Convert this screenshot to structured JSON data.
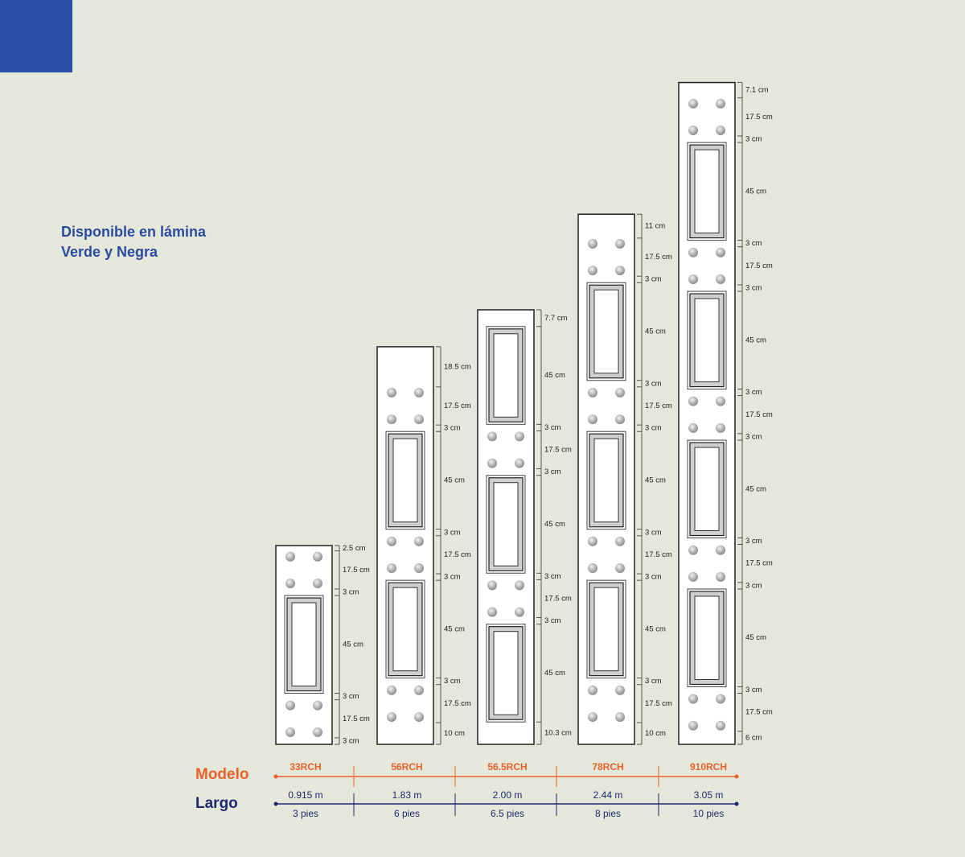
{
  "header": {
    "title_lines": [
      "Disponible en lámina",
      "Verde y Negra"
    ]
  },
  "legend": {
    "model_label": "Modelo",
    "length_label": "Largo"
  },
  "models": [
    {
      "name": "33RCH",
      "length_m": "0.915 m",
      "length_ft": "3 pies",
      "dimensions": [
        "2.5 cm",
        "17.5 cm",
        "3 cm",
        "45 cm",
        "3 cm",
        "17.5 cm",
        "3 cm"
      ]
    },
    {
      "name": "56RCH",
      "length_m": "1.83 m",
      "length_ft": "6 pies",
      "dimensions": [
        "18.5 cm",
        "17.5 cm",
        "3 cm",
        "45 cm",
        "3 cm",
        "17.5 cm",
        "3 cm",
        "45 cm",
        "3 cm",
        "17.5 cm",
        "10 cm"
      ]
    },
    {
      "name": "56.5RCH",
      "length_m": "2.00 m",
      "length_ft": "6.5 pies",
      "dimensions": [
        "7.7 cm",
        "45 cm",
        "3 cm",
        "17.5 cm",
        "3 cm",
        "45 cm",
        "3 cm",
        "17.5 cm",
        "3 cm",
        "45 cm",
        "10.3 cm"
      ]
    },
    {
      "name": "78RCH",
      "length_m": "2.44 m",
      "length_ft": "8 pies",
      "dimensions": [
        "11 cm",
        "17.5 cm",
        "3 cm",
        "45 cm",
        "3 cm",
        "17.5 cm",
        "3 cm",
        "45 cm",
        "3 cm",
        "17.5 cm",
        "3 cm",
        "45 cm",
        "3 cm",
        "17.5 cm",
        "10 cm"
      ]
    },
    {
      "name": "910RCH",
      "length_m": "3.05 m",
      "length_ft": "10 pies",
      "dimensions": [
        "7.1 cm",
        "17.5 cm",
        "3 cm",
        "45 cm",
        "3 cm",
        "17.5 cm",
        "3 cm",
        "45 cm",
        "3 cm",
        "17.5 cm",
        "3 cm",
        "45 cm",
        "3 cm",
        "17.5 cm",
        "3 cm",
        "45 cm",
        "3 cm",
        "17.5 cm",
        "6 cm"
      ]
    }
  ]
}
